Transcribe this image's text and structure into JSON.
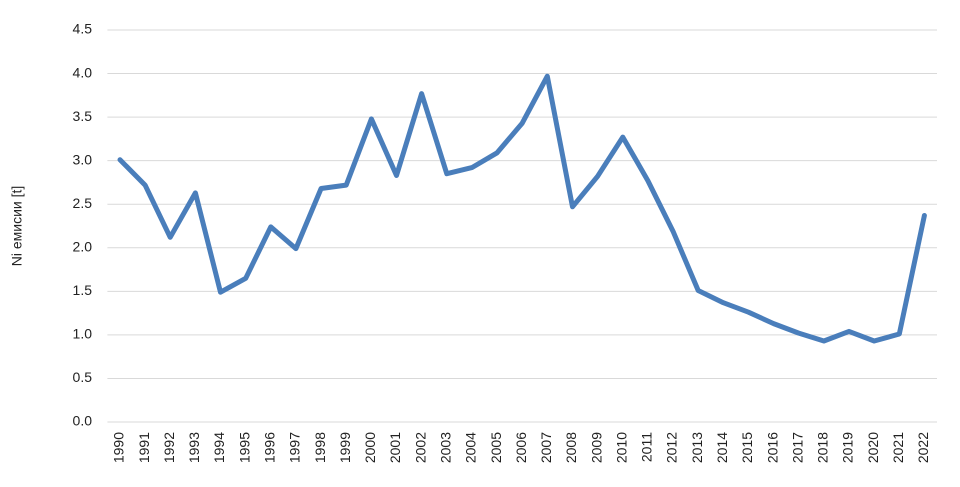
{
  "chart_data": {
    "type": "line",
    "y_label": "Ni емисии [t]",
    "categories": [
      "1990",
      "1991",
      "1992",
      "1993",
      "1994",
      "1995",
      "1996",
      "1997",
      "1998",
      "1999",
      "2000",
      "2001",
      "2002",
      "2003",
      "2004",
      "2005",
      "2006",
      "2007",
      "2008",
      "2009",
      "2010",
      "2011",
      "2012",
      "2013",
      "2014",
      "2015",
      "2016",
      "2017",
      "2018",
      "2019",
      "2020",
      "2021",
      "2022"
    ],
    "values": [
      3.01,
      2.72,
      2.12,
      2.63,
      1.49,
      1.65,
      2.24,
      1.99,
      2.68,
      2.72,
      3.48,
      2.83,
      3.77,
      2.85,
      2.92,
      3.09,
      3.43,
      3.97,
      2.47,
      2.82,
      3.27,
      2.77,
      2.19,
      1.51,
      1.37,
      1.26,
      1.13,
      1.02,
      0.93,
      1.04,
      0.93,
      1.01,
      2.37
    ],
    "color": "#4a7ebb",
    "ylim": [
      0,
      4.5
    ],
    "yticks": [
      {
        "value": 0,
        "label": "0.0"
      },
      0.5,
      {
        "value": 1,
        "label": "1.0"
      },
      1.5,
      {
        "value": 2,
        "label": "2.0"
      },
      2.5,
      {
        "value": 3,
        "label": "3.0"
      },
      3.5,
      {
        "value": 4,
        "label": "4.0"
      },
      4.5
    ],
    "grid": true
  }
}
